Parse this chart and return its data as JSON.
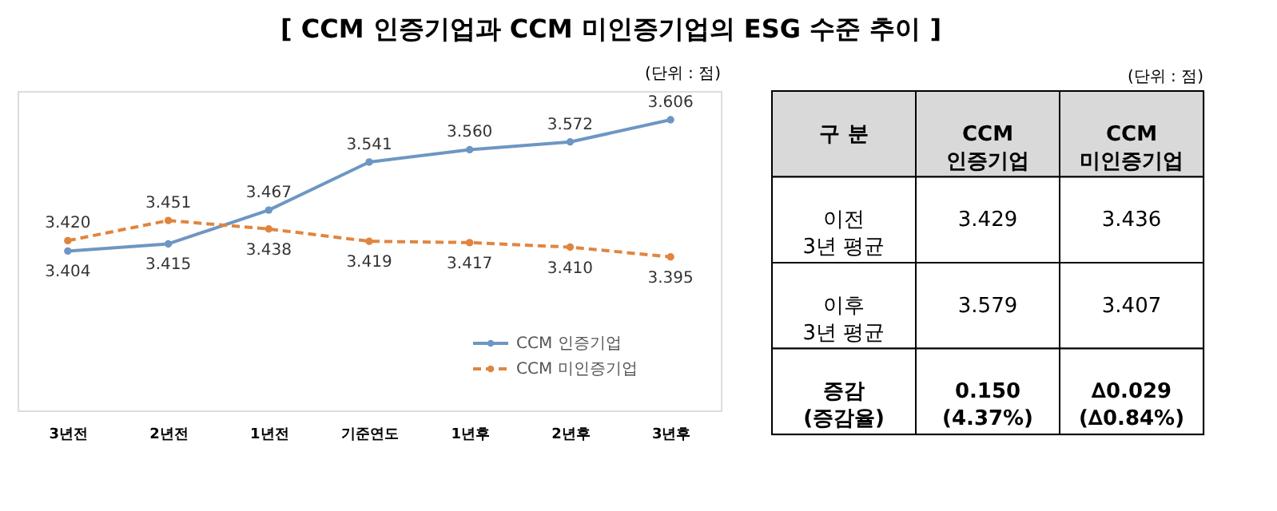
{
  "chart_data": [
    {
      "type": "line",
      "title": "[ CCM 인증기업과 CCM 미인증기업의 ESG 수준 추이 ]",
      "categories": [
        "3년전",
        "2년전",
        "1년전",
        "기준연도",
        "1년후",
        "2년후",
        "3년후"
      ],
      "series": [
        {
          "name": "CCM 인증기업",
          "color": "#6d96c3",
          "line_style": "solid",
          "values": [
            3.404,
            3.415,
            3.467,
            3.541,
            3.56,
            3.572,
            3.606
          ],
          "value_labels": [
            "3.404",
            "3.415",
            "3.467",
            "3.541",
            "3.560",
            "3.572",
            "3.606"
          ]
        },
        {
          "name": "CCM 미인증기업",
          "color": "#e0853f",
          "line_style": "dashed",
          "values": [
            3.42,
            3.451,
            3.438,
            3.419,
            3.417,
            3.41,
            3.395
          ],
          "value_labels": [
            "3.420",
            "3.451",
            "3.438",
            "3.419",
            "3.417",
            "3.410",
            "3.395"
          ]
        }
      ],
      "marker": "circle",
      "legend": "bottom right",
      "grid": false,
      "annotations": [
        "(단위 : 점)"
      ]
    },
    {
      "type": "other",
      "annotations": [
        "(단위 : 점)",
        "구 분",
        "CCM\n인증기업",
        "CCM\n미인증기업",
        "이전\n3년 평균",
        "3.429",
        "3.436",
        "이후\n3년 평균",
        "3.579",
        "3.407",
        "증감\n(증감율)",
        "0.150\n(4.37%)",
        "∆0.029\n(∆0.84%)"
      ]
    }
  ]
}
